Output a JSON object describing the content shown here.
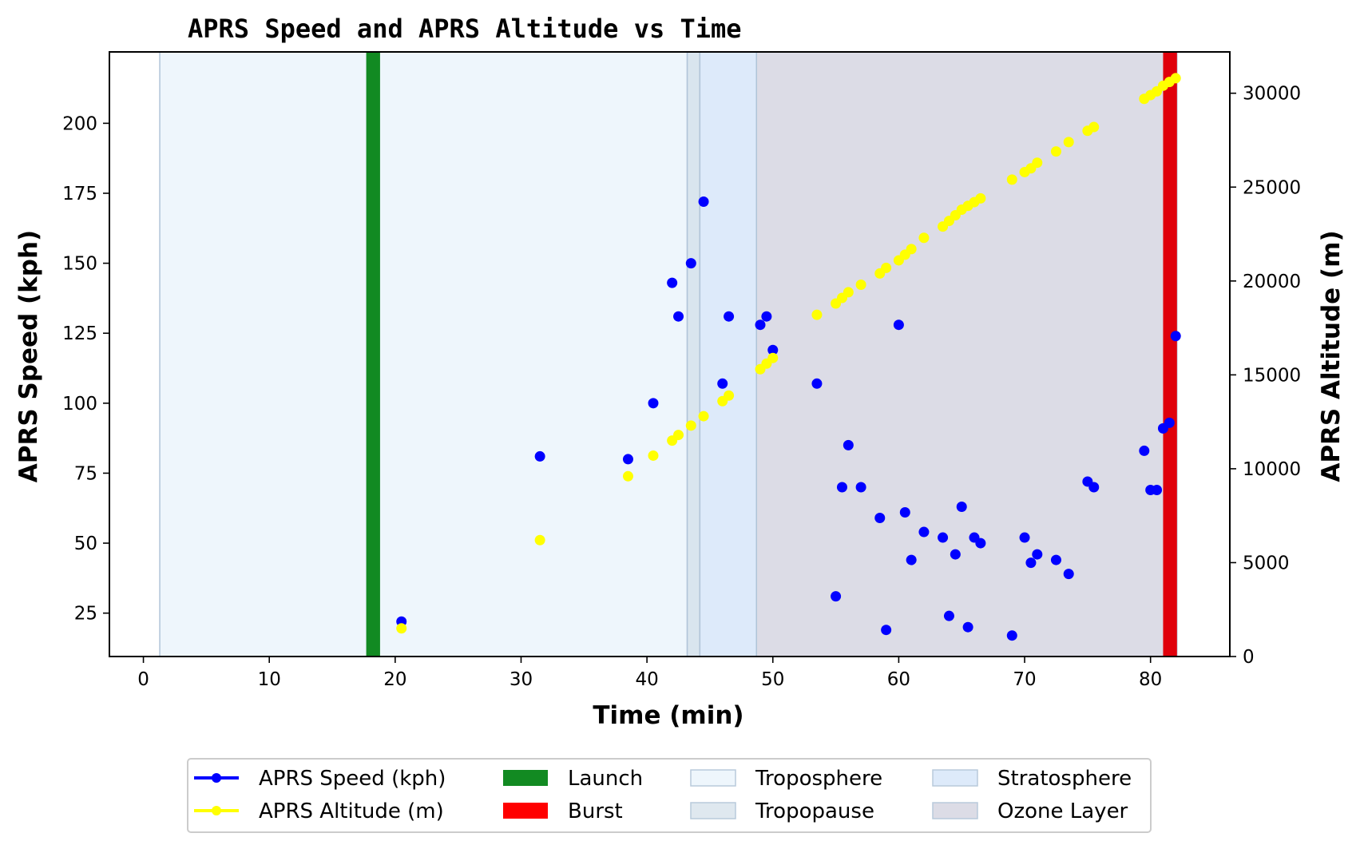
{
  "chart_data": {
    "type": "scatter",
    "title": "APRS Speed and APRS Altitude vs Time",
    "xlabel": "Time (min)",
    "ylabel_left": "APRS Speed (kph)",
    "ylabel_right": "APRS Altitude (m)",
    "xlim": [
      -2.7,
      86.3
    ],
    "ylim_left": [
      9.5,
      225.5
    ],
    "ylim_right": [
      0,
      32200
    ],
    "x_ticks": [
      0,
      10,
      20,
      30,
      40,
      50,
      60,
      70,
      80
    ],
    "y_left_ticks": [
      25,
      50,
      75,
      100,
      125,
      150,
      175,
      200
    ],
    "y_right_ticks": [
      0,
      5000,
      10000,
      15000,
      20000,
      25000,
      30000
    ],
    "grid": false,
    "legend_position": "bottom-center",
    "series": [
      {
        "name": "APRS Speed (kph)",
        "axis": "left",
        "color": "#0000ff",
        "x": [
          20.5,
          31.5,
          38.5,
          40.5,
          42,
          42.5,
          43.5,
          44.5,
          46,
          46.5,
          49,
          49.5,
          50,
          53.5,
          55,
          55.5,
          56,
          57,
          58.5,
          59,
          60,
          60.5,
          61,
          62,
          63.5,
          64,
          64.5,
          65,
          65.5,
          66,
          66.5,
          69,
          70,
          70.5,
          71,
          72.5,
          73.5,
          75,
          75.5,
          79.5,
          80,
          80.5,
          81,
          81.5,
          82
        ],
        "values": [
          22,
          81,
          80,
          100,
          143,
          131,
          150,
          172,
          107,
          131,
          128,
          131,
          119,
          107,
          31,
          70,
          85,
          70,
          59,
          19,
          128,
          61,
          44,
          54,
          52,
          24,
          46,
          63,
          20,
          52,
          50,
          17,
          52,
          43,
          46,
          44,
          39,
          72,
          70,
          83,
          69,
          69,
          91,
          93,
          124
        ]
      },
      {
        "name": "APRS Altitude (m)",
        "axis": "right",
        "color": "#ffff00",
        "x": [
          20.5,
          31.5,
          38.5,
          40.5,
          42,
          42.5,
          43.5,
          44.5,
          46,
          46.5,
          49,
          49.5,
          50,
          53.5,
          55,
          55.5,
          56,
          57,
          58.5,
          59,
          60,
          60.5,
          61,
          62,
          63.5,
          64,
          64.5,
          65,
          65.5,
          66,
          66.5,
          69,
          70,
          70.5,
          71,
          72.5,
          73.5,
          75,
          75.5,
          79.5,
          80,
          80.5,
          81,
          81.5,
          82
        ],
        "values": [
          1500,
          6200,
          9600,
          10700,
          11500,
          11800,
          12300,
          12800,
          13600,
          13900,
          15300,
          15600,
          15900,
          18200,
          18800,
          19100,
          19400,
          19800,
          20400,
          20700,
          21100,
          21400,
          21700,
          22300,
          22900,
          23200,
          23500,
          23800,
          24000,
          24200,
          24400,
          25400,
          25800,
          26000,
          26300,
          26900,
          27400,
          28000,
          28200,
          29700,
          29900,
          30100,
          30400,
          30600,
          30800
        ]
      }
    ],
    "events": [
      {
        "name": "Launch",
        "color": "#128a22",
        "x_start": 17.7,
        "x_end": 18.8
      },
      {
        "name": "Burst",
        "color": "#e0000b",
        "x_start": 81,
        "x_end": 82.1
      }
    ],
    "regions": [
      {
        "name": "Troposphere",
        "color": "#eef6fc",
        "x_start": 1.3,
        "x_end": 43.2
      },
      {
        "name": "Tropopause",
        "color": "#d9e5ee",
        "x_start": 43.2,
        "x_end": 44.2
      },
      {
        "name": "Stratosphere",
        "color": "#ddeafa",
        "x_start": 44.2,
        "x_end": 48.7
      },
      {
        "name": "Ozone Layer",
        "color": "#dcdce6",
        "x_start": 48.7,
        "x_end": 82.1
      }
    ],
    "legend": [
      {
        "label": "APRS Speed (kph)",
        "kind": "line-marker",
        "color": "#0000ff"
      },
      {
        "label": "APRS Altitude (m)",
        "kind": "line-marker",
        "color": "#ffff00"
      },
      {
        "label": "Launch",
        "kind": "patch",
        "color": "#128a22"
      },
      {
        "label": "Burst",
        "kind": "patch",
        "color": "#ff0000"
      },
      {
        "label": "Troposphere",
        "kind": "patch-light",
        "color": "#eef6fc"
      },
      {
        "label": "Tropopause",
        "kind": "patch-light",
        "color": "#dfe8ef"
      },
      {
        "label": "Stratosphere",
        "kind": "patch-light",
        "color": "#ddeafa"
      },
      {
        "label": "Ozone Layer",
        "kind": "patch-light",
        "color": "#dcdce6"
      }
    ]
  }
}
